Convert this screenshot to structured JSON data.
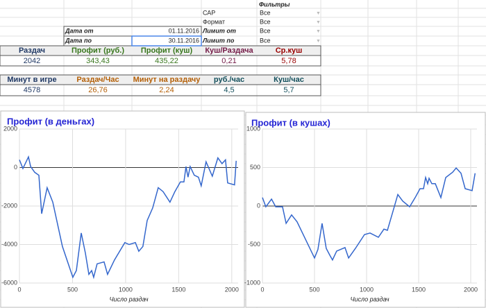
{
  "sheet": {
    "filters_title": "Фильтры",
    "filters": [
      [
        "САР",
        "Все"
      ],
      [
        "Формат",
        "Все"
      ],
      [
        "Лимит от",
        "Все"
      ],
      [
        "Лимит по",
        "Все"
      ]
    ],
    "dates": [
      [
        "Дата от",
        "01.11.2016"
      ],
      [
        "Дата по",
        "30.11.2016"
      ]
    ],
    "table1": {
      "headers": [
        "Раздач",
        "Профит (руб.)",
        "Профит (куш)",
        "Куш/Раздача",
        "Ср.куш"
      ],
      "values": [
        "2042",
        "343,43",
        "435,22",
        "0,21",
        "5,78"
      ]
    },
    "table2": {
      "headers": [
        "Минут в игре",
        "Раздач/Час",
        "Минут на раздачу",
        "руб./час",
        "Куш/час"
      ],
      "values": [
        "4578",
        "26,76",
        "2,24",
        "4,5",
        "5,7"
      ]
    }
  },
  "chart_data": [
    {
      "type": "line",
      "title": "Профит (в деньгах)",
      "x_label": "Число раздач",
      "color": "#3366cc",
      "grid": true,
      "xlim": [
        0,
        2060
      ],
      "ylim": [
        -6000,
        2000
      ],
      "xticks": [
        0,
        500,
        1000,
        1500,
        2000
      ],
      "yticks": [
        -6000,
        -4000,
        -2000,
        0,
        2000
      ],
      "x": [
        0,
        33,
        85,
        105,
        144,
        183,
        209,
        261,
        314,
        405,
        503,
        536,
        582,
        621,
        654,
        680,
        699,
        732,
        797,
        830,
        895,
        993,
        1033,
        1092,
        1124,
        1163,
        1203,
        1255,
        1307,
        1353,
        1418,
        1464,
        1516,
        1549,
        1569,
        1588,
        1608,
        1647,
        1686,
        1712,
        1758,
        1817,
        1869,
        1908,
        1941,
        1961,
        2026,
        2042
      ],
      "values": [
        400,
        -50,
        550,
        50,
        -250,
        -400,
        -2400,
        -1050,
        -1800,
        -4100,
        -5700,
        -5350,
        -3400,
        -4450,
        -5550,
        -5350,
        -5700,
        -5000,
        -4900,
        -5550,
        -4800,
        -3900,
        -4000,
        -3900,
        -4350,
        -4100,
        -2750,
        -2100,
        -1050,
        -1250,
        -1800,
        -1250,
        -750,
        -750,
        50,
        -500,
        50,
        -400,
        -500,
        -950,
        300,
        -450,
        500,
        200,
        400,
        -800,
        -900,
        350
      ]
    },
    {
      "type": "line",
      "title": "Профит (в кушах)",
      "x_label": "Число раздач",
      "color": "#3366cc",
      "grid": true,
      "xlim": [
        0,
        2060
      ],
      "ylim": [
        -1000,
        1000
      ],
      "xticks": [
        0,
        500,
        1000,
        1500,
        2000
      ],
      "yticks": [
        -1000,
        -500,
        0,
        500,
        1000
      ],
      "x": [
        0,
        33,
        87,
        127,
        193,
        227,
        280,
        333,
        413,
        500,
        533,
        573,
        613,
        647,
        673,
        713,
        793,
        827,
        893,
        980,
        1033,
        1113,
        1167,
        1200,
        1247,
        1300,
        1347,
        1413,
        1467,
        1513,
        1547,
        1567,
        1587,
        1600,
        1627,
        1660,
        1713,
        1760,
        1827,
        1860,
        1907,
        1947,
        2013,
        2042
      ],
      "values": [
        110,
        -10,
        90,
        -10,
        -10,
        -225,
        -115,
        -205,
        -430,
        -675,
        -565,
        -225,
        -550,
        -640,
        -700,
        -585,
        -540,
        -675,
        -550,
        -370,
        -350,
        -405,
        -300,
        -315,
        -100,
        150,
        65,
        -10,
        110,
        225,
        225,
        370,
        290,
        360,
        290,
        290,
        110,
        370,
        440,
        495,
        425,
        225,
        200,
        425
      ]
    }
  ]
}
